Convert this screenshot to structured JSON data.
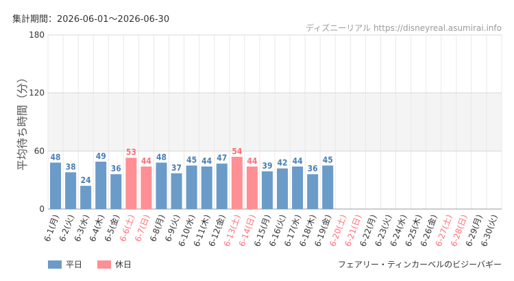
{
  "header": {
    "period_label": "集計期間：2026-06-01～2026-06-30"
  },
  "watermark": "ディズニーリアル https://disneyreal.asumirai.info",
  "attraction": "フェアリー・ティンカーベルのビジーバギー",
  "colors": {
    "weekday": "#6b9bc8",
    "holiday": "#ff8f94",
    "weekday_text": "#4a7fb5",
    "holiday_text": "#ff6f78",
    "axis_text": "#333333"
  },
  "legend": {
    "weekday": "平日",
    "holiday": "休日"
  },
  "chart_data": {
    "type": "bar",
    "ylabel": "平均待ち時間（分）",
    "ylim": [
      0,
      180
    ],
    "yticks": [
      0,
      60,
      120,
      180
    ],
    "shaded_band": [
      60,
      120
    ],
    "categories": [
      "6-1(月)",
      "6-2(火)",
      "6-3(水)",
      "6-4(木)",
      "6-5(金)",
      "6-6(土)",
      "6-7(日)",
      "6-8(月)",
      "6-9(火)",
      "6-10(水)",
      "6-11(木)",
      "6-12(金)",
      "6-13(土)",
      "6-14(日)",
      "6-15(月)",
      "6-16(火)",
      "6-17(水)",
      "6-18(木)",
      "6-19(金)",
      "6-20(土)",
      "6-21(日)",
      "6-22(月)",
      "6-23(火)",
      "6-24(水)",
      "6-25(木)",
      "6-26(金)",
      "6-27(土)",
      "6-28(日)",
      "6-29(月)",
      "6-30(火)"
    ],
    "values": [
      48,
      38,
      24,
      49,
      36,
      53,
      44,
      48,
      37,
      45,
      44,
      47,
      54,
      44,
      39,
      42,
      44,
      36,
      45,
      null,
      null,
      null,
      null,
      null,
      null,
      null,
      null,
      null,
      null,
      null
    ],
    "holiday": [
      false,
      false,
      false,
      false,
      false,
      true,
      true,
      false,
      false,
      false,
      false,
      false,
      true,
      true,
      false,
      false,
      false,
      false,
      false,
      true,
      true,
      false,
      false,
      false,
      false,
      false,
      true,
      true,
      false,
      false
    ]
  }
}
